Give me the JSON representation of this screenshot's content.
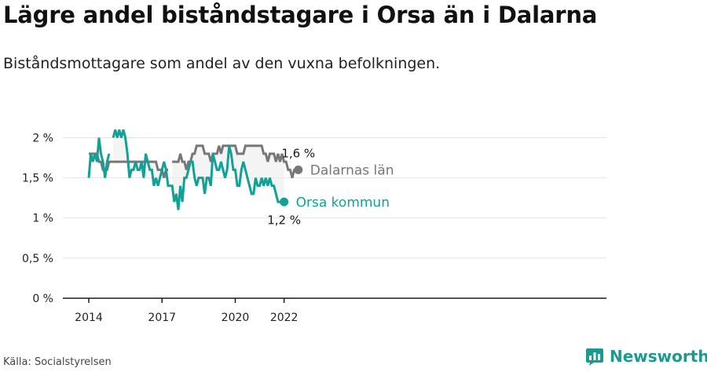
{
  "header": {
    "title": "Lägre andel biståndstagare i Orsa än i Dalarna",
    "subtitle": "Biståndsmottagare som andel av den vuxna befolkningen."
  },
  "footer": {
    "source": "Källa: Socialstyrelsen",
    "brand": "Newsworthy",
    "brand_icon": "bar-chart-logo-icon"
  },
  "colors": {
    "orsa": "#12a295",
    "dalarna": "#77767a",
    "band": "#ececec",
    "grid": "#e3e3e3",
    "axis": "#1a1a1a"
  },
  "chart_data": {
    "type": "line",
    "title": "Lägre andel biståndstagare i Orsa än i Dalarna",
    "subtitle": "Biståndsmottagare som andel av den vuxna befolkningen.",
    "xlabel": "",
    "ylabel": "",
    "x_ticks": [
      "2014",
      "2017",
      "2020",
      "2022"
    ],
    "y_ticks": [
      "0 %",
      "0,5 %",
      "1 %",
      "1,5 %",
      "2 %"
    ],
    "ylim": [
      0,
      2.2
    ],
    "grid": true,
    "legend": "inline-right",
    "x_start": "2014-01",
    "x_step": "month",
    "series": [
      {
        "name": "Dalarnas län",
        "end_label": "1,6 %",
        "values": [
          1.8,
          1.8,
          1.8,
          1.8,
          1.8,
          1.7,
          1.7,
          1.6,
          1.6,
          1.6,
          1.7,
          1.7,
          1.7,
          1.7,
          1.7,
          1.7,
          1.7,
          1.7,
          1.7,
          1.7,
          1.7,
          1.7,
          1.7,
          1.7,
          1.7,
          1.7,
          1.7,
          1.7,
          1.7,
          1.7,
          1.7,
          1.7,
          1.7,
          1.7,
          1.6,
          1.6,
          1.6,
          1.5,
          1.6,
          1.6,
          null,
          1.7,
          1.7,
          1.7,
          1.7,
          1.8,
          1.7,
          1.7,
          1.6,
          1.7,
          1.7,
          1.8,
          1.8,
          1.9,
          1.9,
          1.9,
          1.9,
          1.8,
          1.8,
          1.8,
          1.7,
          1.8,
          1.8,
          1.8,
          1.9,
          1.8,
          1.9,
          1.9,
          1.9,
          1.9,
          1.9,
          1.9,
          1.9,
          1.8,
          1.8,
          1.8,
          1.8,
          1.9,
          1.9,
          1.9,
          1.9,
          1.9,
          1.9,
          1.9,
          1.9,
          1.9,
          1.8,
          1.8,
          1.7,
          1.8,
          1.8,
          1.8,
          1.7,
          1.8,
          1.7,
          1.8,
          1.7,
          1.7,
          1.6,
          1.6,
          1.5,
          1.6,
          1.6,
          1.6
        ]
      },
      {
        "name": "Orsa kommun",
        "end_label": "1,2 %",
        "values": [
          1.5,
          1.8,
          1.7,
          1.8,
          1.7,
          2.0,
          1.8,
          1.7,
          1.5,
          1.7,
          1.8,
          null,
          2.0,
          2.1,
          2.0,
          2.1,
          2.0,
          2.1,
          2.0,
          1.8,
          1.5,
          1.6,
          1.6,
          1.7,
          1.6,
          1.6,
          1.7,
          1.5,
          1.8,
          1.7,
          1.6,
          1.6,
          1.4,
          1.5,
          1.4,
          1.5,
          1.6,
          1.7,
          1.6,
          1.4,
          1.4,
          1.4,
          1.2,
          1.3,
          1.1,
          1.4,
          1.2,
          1.5,
          1.5,
          1.6,
          1.7,
          1.7,
          1.5,
          1.4,
          1.5,
          1.5,
          1.5,
          1.3,
          1.5,
          1.5,
          1.4,
          1.8,
          1.7,
          1.6,
          1.6,
          1.7,
          1.6,
          1.5,
          1.6,
          1.9,
          1.8,
          1.6,
          1.6,
          1.4,
          1.4,
          1.6,
          1.7,
          1.6,
          1.5,
          1.4,
          1.3,
          1.3,
          1.5,
          1.4,
          1.4,
          1.5,
          1.4,
          1.5,
          1.4,
          1.5,
          1.4,
          1.4,
          1.3,
          1.2,
          1.2,
          1.2,
          1.2
        ]
      }
    ]
  }
}
